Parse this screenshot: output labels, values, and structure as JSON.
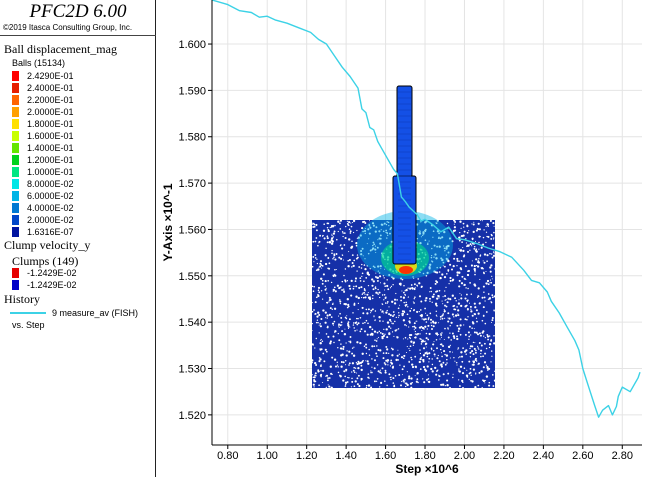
{
  "app": {
    "title": "PFC2D 6.00",
    "copyright": "©2019 Itasca Consulting Group, Inc."
  },
  "legend": {
    "ball_disp": {
      "title": "Ball displacement_mag",
      "subtitle": "Balls (15134)",
      "entries": [
        {
          "color": "#ff0000",
          "label": "2.4290E-01"
        },
        {
          "color": "#e61e00",
          "label": "2.4000E-01"
        },
        {
          "color": "#ff6400",
          "label": "2.2000E-01"
        },
        {
          "color": "#ffa000",
          "label": "2.0000E-01"
        },
        {
          "color": "#ffe000",
          "label": "1.8000E-01"
        },
        {
          "color": "#c8ff00",
          "label": "1.6000E-01"
        },
        {
          "color": "#64e600",
          "label": "1.4000E-01"
        },
        {
          "color": "#00d21e",
          "label": "1.2000E-01"
        },
        {
          "color": "#00e682",
          "label": "1.0000E-01"
        },
        {
          "color": "#00e6e6",
          "label": "8.0000E-02"
        },
        {
          "color": "#00b4e6",
          "label": "6.0000E-02"
        },
        {
          "color": "#0078d2",
          "label": "4.0000E-02"
        },
        {
          "color": "#0046c8",
          "label": "2.0000E-02"
        },
        {
          "color": "#0014a0",
          "label": "1.6316E-07"
        }
      ]
    },
    "clump_vel": {
      "title": "Clump velocity_y",
      "subtitle": "Clumps (149)",
      "entries": [
        {
          "color": "#e60000",
          "label": "-1.2429E-02"
        },
        {
          "color": "#0000c8",
          "label": "-1.2429E-02"
        }
      ]
    },
    "history": {
      "title": "History",
      "entry_label": "9 measure_av (FISH)",
      "entry_color": "#3cd2e6",
      "vs": "vs. Step"
    }
  },
  "chart_data": {
    "type": "line",
    "xlabel": "Step ×10^6",
    "ylabel": "Y-Axis ×10^-1",
    "xlim": [
      0.72,
      2.9
    ],
    "ylim": [
      1.5135,
      1.6095
    ],
    "x_ticks": [
      "0.80",
      "1.00",
      "1.20",
      "1.40",
      "1.60",
      "1.80",
      "2.00",
      "2.20",
      "2.40",
      "2.60",
      "2.80"
    ],
    "y_ticks": [
      "1.520",
      "1.530",
      "1.540",
      "1.550",
      "1.560",
      "1.570",
      "1.580",
      "1.590",
      "1.600"
    ],
    "grid": true,
    "series": [
      {
        "color": "#3cd2e6",
        "x": [
          0.72,
          0.8,
          0.86,
          0.92,
          0.96,
          1.0,
          1.04,
          1.1,
          1.16,
          1.22,
          1.26,
          1.3,
          1.34,
          1.38,
          1.42,
          1.46,
          1.48,
          1.5,
          1.52,
          1.54,
          1.56,
          1.58,
          1.6,
          1.62,
          1.64,
          1.66,
          1.68,
          1.7,
          1.72,
          1.74,
          1.76,
          1.78,
          1.8,
          1.84,
          1.88,
          1.92,
          1.96,
          2.0,
          2.06,
          2.12,
          2.18,
          2.24,
          2.3,
          2.34,
          2.38,
          2.42,
          2.44,
          2.48,
          2.52,
          2.56,
          2.58,
          2.6,
          2.63,
          2.66,
          2.68,
          2.7,
          2.73,
          2.75,
          2.77,
          2.78,
          2.8,
          2.84,
          2.88,
          2.89
        ],
        "y": [
          1.6095,
          1.6085,
          1.6072,
          1.6068,
          1.6058,
          1.606,
          1.6052,
          1.6045,
          1.6035,
          1.6025,
          1.601,
          1.6,
          1.5975,
          1.595,
          1.593,
          1.5905,
          1.586,
          1.5852,
          1.582,
          1.5815,
          1.579,
          1.5775,
          1.576,
          1.5745,
          1.573,
          1.572,
          1.567,
          1.566,
          1.5648,
          1.564,
          1.5632,
          1.5618,
          1.5622,
          1.561,
          1.5595,
          1.5605,
          1.558,
          1.5578,
          1.557,
          1.556,
          1.5552,
          1.554,
          1.5512,
          1.549,
          1.5485,
          1.5465,
          1.5445,
          1.542,
          1.539,
          1.536,
          1.534,
          1.53,
          1.526,
          1.522,
          1.5195,
          1.521,
          1.522,
          1.52,
          1.5218,
          1.524,
          1.526,
          1.525,
          1.528,
          1.5292
        ]
      }
    ]
  }
}
